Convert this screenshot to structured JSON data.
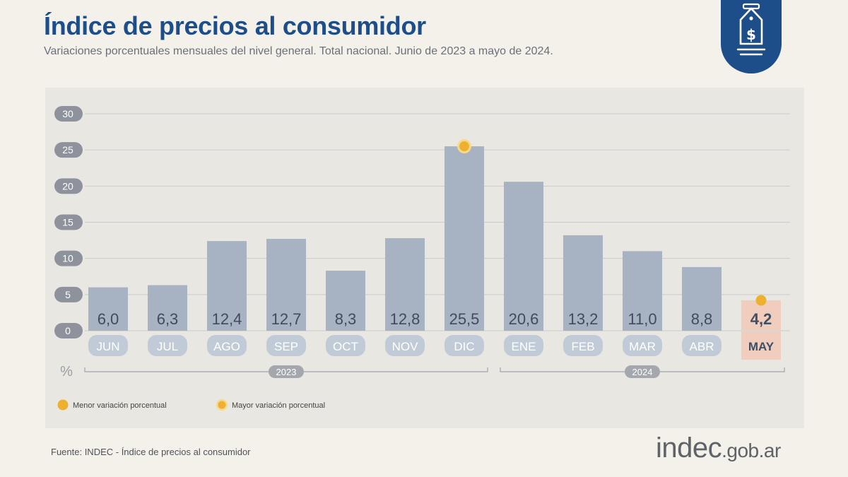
{
  "header": {
    "title": "Índice de precios al consumidor",
    "subtitle": "Variaciones porcentuales mensuales del nivel general. Total nacional. Junio de 2023 a mayo de 2024."
  },
  "badge": {
    "icon": "price-tag-dollar-icon",
    "color": "#1d4e89"
  },
  "chart_data": {
    "type": "bar",
    "categories": [
      "JUN",
      "JUL",
      "AGO",
      "SEP",
      "OCT",
      "NOV",
      "DIC",
      "ENE",
      "FEB",
      "MAR",
      "ABR",
      "MAY"
    ],
    "values": [
      6.0,
      6.3,
      12.4,
      12.7,
      8.3,
      12.8,
      25.5,
      20.6,
      13.2,
      11.0,
      8.8,
      4.2
    ],
    "value_labels": [
      "6,0",
      "6,3",
      "12,4",
      "12,7",
      "8,3",
      "12,8",
      "25,5",
      "20,6",
      "13,2",
      "11,0",
      "8,8",
      "4,2"
    ],
    "ylim": [
      0,
      30
    ],
    "yticks": [
      0,
      5,
      10,
      15,
      20,
      25,
      30
    ],
    "y_unit": "%",
    "grid": true,
    "groups": [
      {
        "label": "2023",
        "from": 0,
        "to": 6
      },
      {
        "label": "2024",
        "from": 7,
        "to": 11
      }
    ],
    "highlight": {
      "min_index": 11,
      "max_index": 6
    },
    "colors": {
      "bar": "#a7b3c3",
      "highlight_bar": "#f0cdbd",
      "dot": "#edb12f",
      "tick_pill": "#8e929c",
      "month_pill": "#c1cbd7"
    },
    "legend": [
      {
        "label": "Menor variación porcentual",
        "marker": "solid-dot"
      },
      {
        "label": "Mayor variación porcentual",
        "marker": "ring-dot"
      }
    ],
    "legend_position": "bottom-left"
  },
  "footer": {
    "source": "Fuente: INDEC - Índice de precios al consumidor",
    "brand_main": "indec",
    "brand_domain": ".gob.ar"
  }
}
